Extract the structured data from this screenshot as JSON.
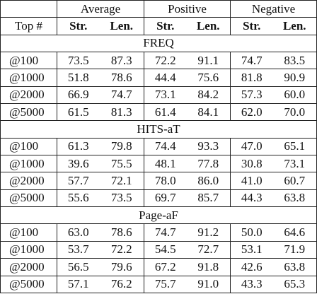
{
  "table": {
    "corner": "Top #",
    "groups": [
      "Average",
      "Positive",
      "Negative"
    ],
    "subheaders": [
      "Str.",
      "Len.",
      "Str.",
      "Len.",
      "Str.",
      "Len."
    ],
    "sections": [
      {
        "title": "FREQ",
        "rows": [
          [
            "@100",
            "73.5",
            "87.3",
            "72.2",
            "91.1",
            "74.7",
            "83.5"
          ],
          [
            "@1000",
            "51.8",
            "78.6",
            "44.4",
            "75.6",
            "81.8",
            "90.9"
          ],
          [
            "@2000",
            "66.9",
            "74.7",
            "73.1",
            "84.2",
            "57.3",
            "60.0"
          ],
          [
            "@5000",
            "61.5",
            "81.3",
            "61.4",
            "84.1",
            "62.0",
            "70.0"
          ]
        ]
      },
      {
        "title": "HITS-aT",
        "rows": [
          [
            "@100",
            "61.3",
            "79.8",
            "74.4",
            "93.3",
            "47.0",
            "65.1"
          ],
          [
            "@1000",
            "39.6",
            "75.5",
            "48.1",
            "77.8",
            "30.8",
            "73.1"
          ],
          [
            "@2000",
            "57.7",
            "72.1",
            "78.0",
            "86.0",
            "41.0",
            "60.7"
          ],
          [
            "@5000",
            "55.6",
            "73.5",
            "69.7",
            "85.7",
            "44.3",
            "63.8"
          ]
        ]
      },
      {
        "title": "Page-aF",
        "rows": [
          [
            "@100",
            "63.0",
            "78.6",
            "74.7",
            "91.2",
            "50.0",
            "64.6"
          ],
          [
            "@1000",
            "53.7",
            "72.2",
            "54.5",
            "72.7",
            "53.1",
            "71.9"
          ],
          [
            "@2000",
            "56.5",
            "79.6",
            "67.2",
            "91.8",
            "42.6",
            "63.8"
          ],
          [
            "@5000",
            "57.1",
            "76.2",
            "75.7",
            "91.0",
            "43.3",
            "65.3"
          ]
        ]
      }
    ]
  }
}
